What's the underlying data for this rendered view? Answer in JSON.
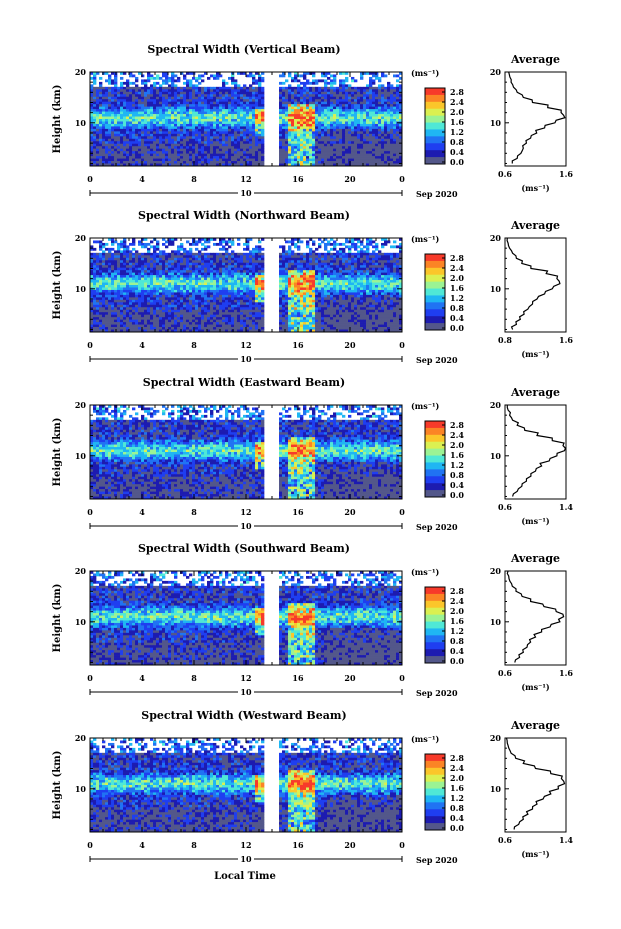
{
  "figure": {
    "xlabel": "Local Time",
    "ylabel": "Height (km)",
    "date_suffix": "Sep 2020",
    "day_start": "10",
    "x_tick_labels": [
      "0",
      "4",
      "8",
      "12",
      "16",
      "20",
      "0"
    ],
    "y_tick_labels": [
      "10",
      "20"
    ],
    "colorbar_unit": "(ms⁻¹)",
    "colorbar_labels": [
      "2.8",
      "2.4",
      "2.0",
      "1.6",
      "1.2",
      "0.8",
      "0.4",
      "0.0"
    ],
    "colorbar_colors": [
      "#f73a2a",
      "#fb8425",
      "#fbc62a",
      "#dbf051",
      "#9bf394",
      "#4fe8d6",
      "#1fb6f3",
      "#2073f3",
      "#1f3ef0",
      "#1d1bb0",
      "#53578a"
    ],
    "avg_title": "Average",
    "avg_xlabel": "(ms⁻¹)",
    "avg_y_tick_labels": [
      "10",
      "20"
    ]
  },
  "chart_data": [
    {
      "type": "heatmap",
      "title": "Spectral Width (Vertical Beam)",
      "xlabel": "Local Time",
      "ylabel": "Height (km)",
      "x_range_hours": [
        0,
        24
      ],
      "y_range_km": [
        1.5,
        20
      ],
      "color_range_ms": [
        0.0,
        3.0
      ],
      "data_gap_hours": [
        13.5,
        14.5
      ],
      "enhanced_width_heights_km": [
        9,
        14
      ],
      "average_profile": {
        "x_tick_labels": [
          "0.6",
          "1.6"
        ],
        "xlim": [
          0.6,
          1.6
        ],
        "height_km": [
          2,
          3,
          4,
          5,
          6,
          7,
          8,
          9,
          10,
          11,
          12,
          13,
          14,
          15,
          16,
          17,
          18,
          19,
          20
        ],
        "spectral_width_ms": [
          0.72,
          0.8,
          0.86,
          0.9,
          0.95,
          1.02,
          1.12,
          1.25,
          1.42,
          1.58,
          1.52,
          1.3,
          1.05,
          0.9,
          0.8,
          0.74,
          0.7,
          0.68,
          0.66
        ]
      }
    },
    {
      "type": "heatmap",
      "title": "Spectral Width (Northward Beam)",
      "xlabel": "Local Time",
      "ylabel": "Height (km)",
      "x_range_hours": [
        0,
        24
      ],
      "y_range_km": [
        1.5,
        20
      ],
      "color_range_ms": [
        0.0,
        3.0
      ],
      "data_gap_hours": [
        13.5,
        14.5
      ],
      "enhanced_width_heights_km": [
        9,
        14
      ],
      "average_profile": {
        "x_tick_labels": [
          "0.8",
          "1.6"
        ],
        "xlim": [
          0.8,
          1.6
        ],
        "height_km": [
          2,
          3,
          4,
          5,
          6,
          7,
          8,
          9,
          10,
          11,
          12,
          13,
          14,
          15,
          16,
          17,
          18,
          19,
          20
        ],
        "spectral_width_ms": [
          0.9,
          0.95,
          1.0,
          1.05,
          1.1,
          1.16,
          1.22,
          1.32,
          1.42,
          1.52,
          1.48,
          1.34,
          1.14,
          1.02,
          0.95,
          0.9,
          0.86,
          0.84,
          0.83
        ]
      }
    },
    {
      "type": "heatmap",
      "title": "Spectral Width (Eastward Beam)",
      "xlabel": "Local Time",
      "ylabel": "Height (km)",
      "x_range_hours": [
        0,
        24
      ],
      "y_range_km": [
        1.5,
        20
      ],
      "color_range_ms": [
        0.0,
        3.0
      ],
      "data_gap_hours": [
        13.5,
        14.5
      ],
      "enhanced_width_heights_km": [
        9,
        14
      ],
      "average_profile": {
        "x_tick_labels": [
          "0.6",
          "1.4"
        ],
        "xlim": [
          0.6,
          1.4
        ],
        "height_km": [
          2,
          3,
          4,
          5,
          6,
          7,
          8,
          9,
          10,
          11,
          12,
          13,
          14,
          15,
          16,
          17,
          18,
          19,
          20
        ],
        "spectral_width_ms": [
          0.7,
          0.76,
          0.82,
          0.88,
          0.94,
          1.0,
          1.08,
          1.18,
          1.28,
          1.38,
          1.36,
          1.22,
          1.02,
          0.86,
          0.76,
          0.7,
          0.66,
          0.64,
          0.63
        ]
      }
    },
    {
      "type": "heatmap",
      "title": "Spectral Width (Southward Beam)",
      "xlabel": "Local Time",
      "ylabel": "Height (km)",
      "x_range_hours": [
        0,
        24
      ],
      "y_range_km": [
        1.5,
        20
      ],
      "color_range_ms": [
        0.0,
        3.0
      ],
      "data_gap_hours": [
        13.5,
        14.5
      ],
      "enhanced_width_heights_km": [
        9,
        14
      ],
      "average_profile": {
        "x_tick_labels": [
          "0.6",
          "1.6"
        ],
        "xlim": [
          0.6,
          1.6
        ],
        "height_km": [
          2,
          3,
          4,
          5,
          6,
          7,
          8,
          9,
          10,
          11,
          12,
          13,
          14,
          15,
          16,
          17,
          18,
          19,
          20
        ],
        "spectral_width_ms": [
          0.76,
          0.84,
          0.9,
          0.96,
          1.02,
          1.1,
          1.2,
          1.34,
          1.5,
          1.56,
          1.44,
          1.24,
          1.02,
          0.88,
          0.78,
          0.72,
          0.68,
          0.66,
          0.65
        ]
      }
    },
    {
      "type": "heatmap",
      "title": "Spectral Width (Westward Beam)",
      "xlabel": "Local Time",
      "ylabel": "Height (km)",
      "x_range_hours": [
        0,
        24
      ],
      "y_range_km": [
        1.5,
        20
      ],
      "color_range_ms": [
        0.0,
        3.0
      ],
      "data_gap_hours": [
        13.5,
        14.5
      ],
      "enhanced_width_heights_km": [
        9,
        14
      ],
      "average_profile": {
        "x_tick_labels": [
          "0.6",
          "1.4"
        ],
        "xlim": [
          0.6,
          1.4
        ],
        "height_km": [
          2,
          3,
          4,
          5,
          6,
          7,
          8,
          9,
          10,
          11,
          12,
          13,
          14,
          15,
          16,
          17,
          18,
          19,
          20
        ],
        "spectral_width_ms": [
          0.72,
          0.78,
          0.84,
          0.9,
          0.96,
          1.02,
          1.1,
          1.2,
          1.3,
          1.38,
          1.34,
          1.2,
          1.0,
          0.84,
          0.74,
          0.68,
          0.65,
          0.63,
          0.62
        ]
      }
    }
  ]
}
